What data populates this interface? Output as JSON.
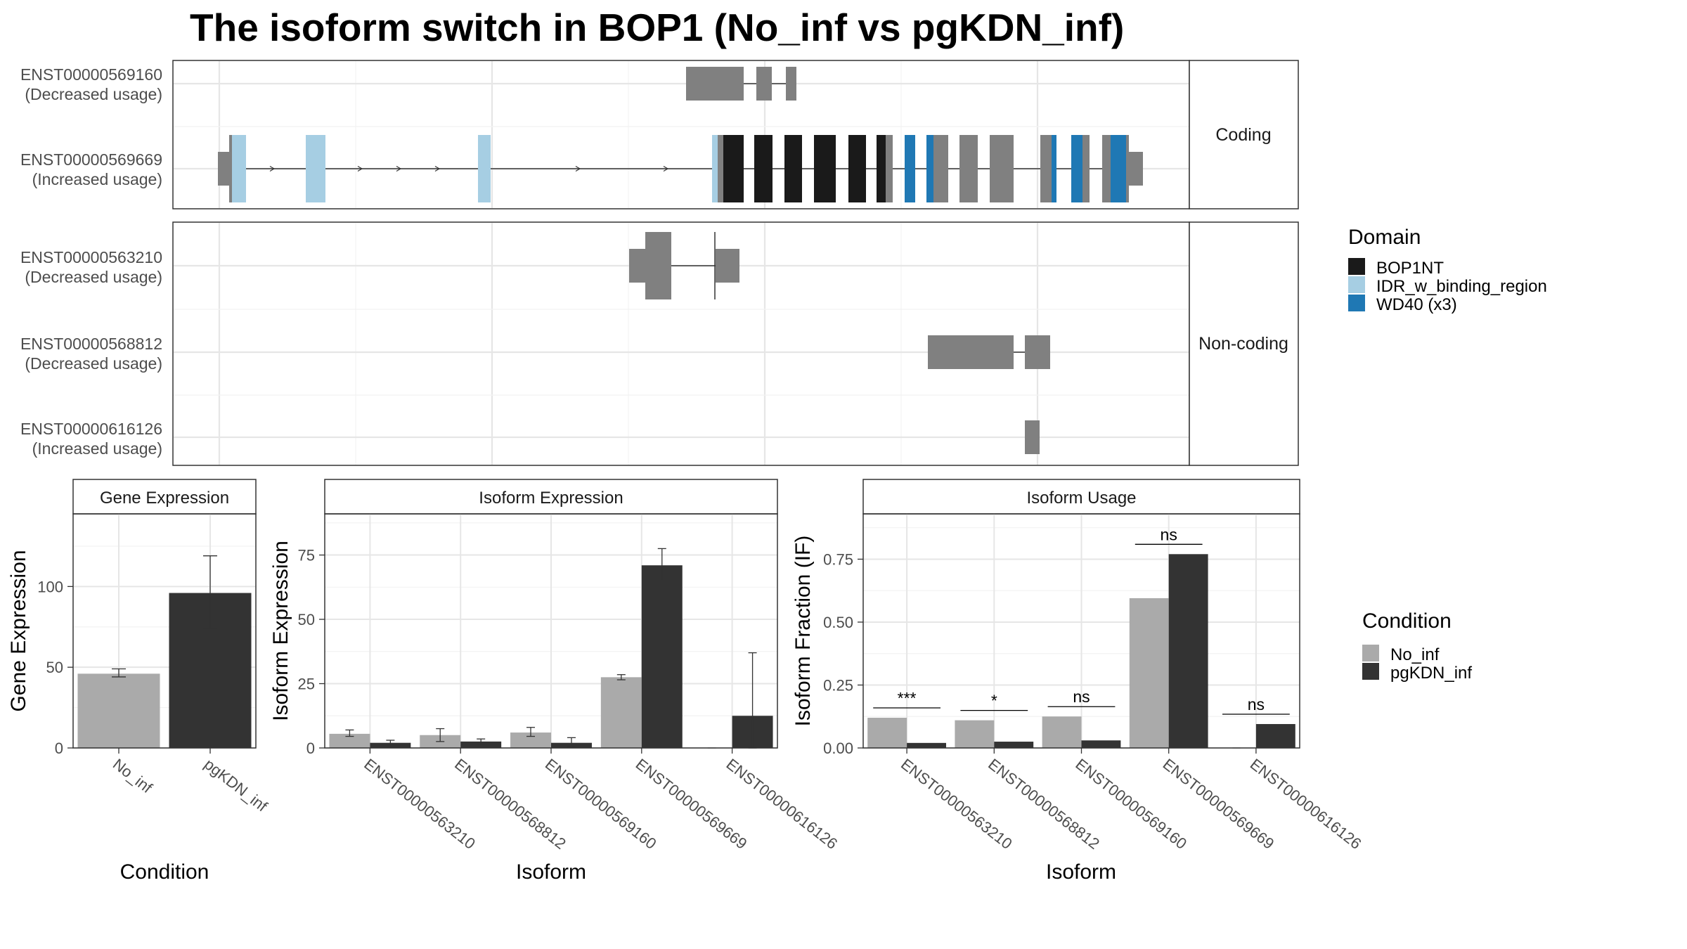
{
  "title": "The isoform switch in BOP1 (No_inf vs pgKDN_inf)",
  "colors": {
    "BOP1NT": "#1a1a1a",
    "IDR_w_binding_region": "#a6cee3",
    "WD40 (x3)": "#1f78b4",
    "exon": "#808080",
    "No_inf": "#aaaaaa",
    "pgKDN_inf": "#333333"
  },
  "structure": {
    "facets": [
      "Coding",
      "Non-coding"
    ],
    "transcripts": [
      {
        "id": "ENST00000569160",
        "usage": "(Decreased usage)",
        "facet": "Coding"
      },
      {
        "id": "ENST00000569669",
        "usage": "(Increased usage)",
        "facet": "Coding"
      },
      {
        "id": "ENST00000563210",
        "usage": "(Decreased usage)",
        "facet": "Non-coding"
      },
      {
        "id": "ENST00000568812",
        "usage": "(Decreased usage)",
        "facet": "Non-coding"
      },
      {
        "id": "ENST00000616126",
        "usage": "(Increased usage)",
        "facet": "Non-coding"
      }
    ]
  },
  "legend_domain": {
    "title": "Domain",
    "items": [
      "BOP1NT",
      "IDR_w_binding_region",
      "WD40 (x3)"
    ]
  },
  "legend_condition": {
    "title": "Condition",
    "items": [
      "No_inf",
      "pgKDN_inf"
    ]
  },
  "chart_data": [
    {
      "type": "bar",
      "title": "Gene Expression",
      "xlabel": "Condition",
      "ylabel": "Gene Expression",
      "categories": [
        "No_inf",
        "pgKDN_inf"
      ],
      "values": [
        46,
        96
      ],
      "errors": [
        [
          44,
          49
        ],
        [
          74,
          119
        ]
      ],
      "yticks": [
        0,
        50,
        100
      ],
      "ylim": [
        0,
        145
      ]
    },
    {
      "type": "bar",
      "title": "Isoform Expression",
      "xlabel": "Isoform",
      "ylabel": "Isoform Expression",
      "categories": [
        "ENST00000563210",
        "ENST00000568812",
        "ENST00000569160",
        "ENST00000569669",
        "ENST00000616126"
      ],
      "series": [
        {
          "name": "No_inf",
          "values": [
            5.5,
            5,
            6,
            27.5,
            0
          ],
          "errors": [
            [
              4.5,
              7
            ],
            [
              2.5,
              7.5
            ],
            [
              4.5,
              8
            ],
            [
              26.5,
              28.5
            ],
            [
              0,
              0
            ]
          ]
        },
        {
          "name": "pgKDN_inf",
          "values": [
            2,
            2.5,
            2,
            71,
            12.5
          ],
          "errors": [
            [
              1,
              3
            ],
            [
              1.5,
              3.5
            ],
            [
              0.5,
              4
            ],
            [
              65,
              77.5
            ],
            [
              0,
              37
            ]
          ]
        }
      ],
      "yticks": [
        0,
        25,
        50,
        75
      ],
      "ylim": [
        0,
        91
      ]
    },
    {
      "type": "bar",
      "title": "Isoform Usage",
      "xlabel": "Isoform",
      "ylabel": "Isoform Fraction (IF)",
      "categories": [
        "ENST00000563210",
        "ENST00000568812",
        "ENST00000569160",
        "ENST00000569669",
        "ENST00000616126"
      ],
      "series": [
        {
          "name": "No_inf",
          "values": [
            0.12,
            0.11,
            0.125,
            0.595,
            0
          ]
        },
        {
          "name": "pgKDN_inf",
          "values": [
            0.02,
            0.025,
            0.03,
            0.77,
            0.095
          ]
        }
      ],
      "significance": [
        "***",
        "*",
        "ns",
        "ns",
        "ns"
      ],
      "yticks": [
        "0.00",
        "0.25",
        "0.50",
        "0.75"
      ],
      "ylim": [
        0,
        0.93
      ]
    }
  ]
}
